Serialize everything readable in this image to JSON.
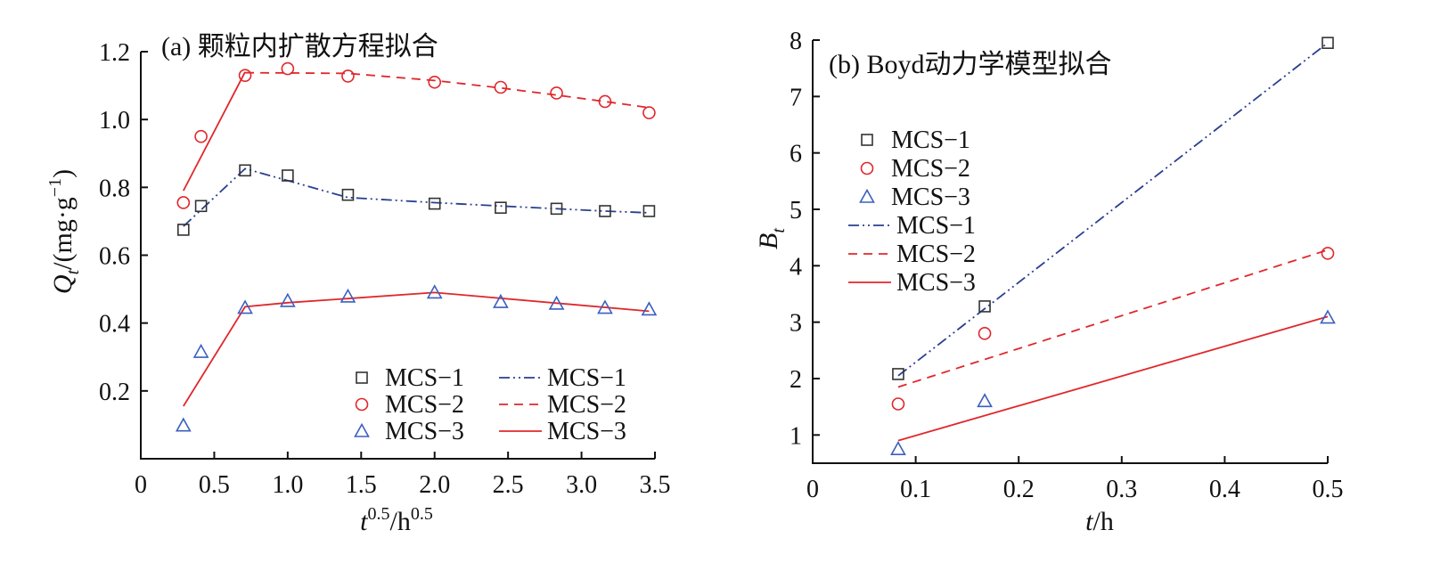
{
  "colors": {
    "mcs1": "#2a3f8f",
    "mcs2": "#e0272b",
    "mcs3": "#3b5fc0",
    "axis": "#111111"
  },
  "chart_data": [
    {
      "type": "scatter",
      "title": "(a)  颗粒内扩散方程拟合",
      "xlabel": "t^0.5/h^0.5",
      "ylabel": "Qt/(mg·g−1)",
      "xlim": [
        0,
        3.5
      ],
      "ylim": [
        0,
        1.2
      ],
      "xticks": [
        0,
        0.5,
        1.0,
        1.5,
        2.0,
        2.5,
        3.0,
        3.5
      ],
      "xtick_labels": [
        "0",
        "0.5",
        "1.0",
        "1.5",
        "2.0",
        "2.5",
        "3.0",
        "3.5"
      ],
      "yticks": [
        0.2,
        0.4,
        0.6,
        0.8,
        1.0,
        1.2
      ],
      "ytick_labels": [
        "0.2",
        "0.4",
        "0.6",
        "0.8",
        "1.0",
        "1.2"
      ],
      "legend_position": "bottom-right",
      "series": [
        {
          "name": "MCS−1",
          "kind": "points",
          "marker": "square",
          "color": "#333333",
          "x": [
            0.29,
            0.41,
            0.71,
            1.0,
            1.41,
            2.0,
            2.45,
            2.83,
            3.16,
            3.46
          ],
          "y": [
            0.675,
            0.745,
            0.85,
            0.835,
            0.778,
            0.752,
            0.74,
            0.737,
            0.73,
            0.73
          ]
        },
        {
          "name": "MCS−2",
          "kind": "points",
          "marker": "circle",
          "color": "#e0272b",
          "x": [
            0.29,
            0.41,
            0.71,
            1.0,
            1.41,
            2.0,
            2.45,
            2.83,
            3.16,
            3.46
          ],
          "y": [
            0.755,
            0.95,
            1.13,
            1.15,
            1.128,
            1.11,
            1.095,
            1.078,
            1.053,
            1.02
          ]
        },
        {
          "name": "MCS−3",
          "kind": "points",
          "marker": "triangle",
          "color": "#3b5fc0",
          "x": [
            0.29,
            0.41,
            0.71,
            1.0,
            1.41,
            2.0,
            2.45,
            2.83,
            3.16,
            3.46
          ],
          "y": [
            0.098,
            0.315,
            0.445,
            0.465,
            0.478,
            0.49,
            0.462,
            0.457,
            0.445,
            0.44
          ]
        },
        {
          "name": "MCS−1",
          "kind": "line",
          "dash": "dashdotdot",
          "color": "#2a3f8f",
          "x": [
            0.29,
            0.71,
            1.0,
            1.41,
            2.0,
            2.45,
            2.83,
            3.16,
            3.46
          ],
          "y": [
            0.685,
            0.855,
            0.82,
            0.77,
            0.755,
            0.745,
            0.737,
            0.73,
            0.725
          ]
        },
        {
          "name": "MCS−2",
          "kind": "line",
          "dash": "dashed",
          "color": "#e0272b",
          "x": [
            0.71,
            1.41,
            2.0,
            2.45,
            2.83,
            3.16,
            3.46
          ],
          "y": [
            1.138,
            1.136,
            1.115,
            1.093,
            1.072,
            1.053,
            1.035
          ]
        },
        {
          "name": "MCS−2",
          "kind": "line",
          "dash": "solid",
          "color": "#e0272b",
          "legend": false,
          "x": [
            0.29,
            0.71
          ],
          "y": [
            0.79,
            1.14
          ]
        },
        {
          "name": "MCS−3",
          "kind": "line",
          "dash": "solid",
          "color": "#e0272b",
          "x": [
            0.29,
            0.71,
            1.0,
            2.0,
            3.46
          ],
          "y": [
            0.155,
            0.448,
            0.46,
            0.49,
            0.435
          ]
        }
      ]
    },
    {
      "type": "scatter",
      "title": "(b)  Boyd动力学模型拟合",
      "xlabel": "t/h",
      "ylabel": "Bt",
      "xlim": [
        0,
        0.5
      ],
      "ylim": [
        0.5,
        8
      ],
      "xticks": [
        0,
        0.1,
        0.2,
        0.3,
        0.4,
        0.5
      ],
      "xtick_labels": [
        "0",
        "0.1",
        "0.2",
        "0.3",
        "0.4",
        "0.5"
      ],
      "yticks": [
        1,
        2,
        3,
        4,
        5,
        6,
        7,
        8
      ],
      "ytick_labels": [
        "1",
        "2",
        "3",
        "4",
        "5",
        "6",
        "7",
        "8"
      ],
      "legend_position": "upper-left",
      "series": [
        {
          "name": "MCS−1",
          "kind": "points",
          "marker": "square",
          "color": "#333333",
          "x": [
            0.083,
            0.167,
            0.5
          ],
          "y": [
            2.08,
            3.28,
            7.95
          ]
        },
        {
          "name": "MCS−2",
          "kind": "points",
          "marker": "circle",
          "color": "#e0272b",
          "x": [
            0.083,
            0.167,
            0.5
          ],
          "y": [
            1.55,
            2.8,
            4.22
          ]
        },
        {
          "name": "MCS−3",
          "kind": "points",
          "marker": "triangle",
          "color": "#3b5fc0",
          "x": [
            0.083,
            0.167,
            0.5
          ],
          "y": [
            0.75,
            1.6,
            3.08
          ]
        },
        {
          "name": "MCS−1",
          "kind": "line",
          "dash": "dashdotdot",
          "color": "#2a3f8f",
          "x": [
            0.083,
            0.5
          ],
          "y": [
            2.05,
            7.95
          ]
        },
        {
          "name": "MCS−2",
          "kind": "line",
          "dash": "dashed",
          "color": "#e0272b",
          "x": [
            0.083,
            0.5
          ],
          "y": [
            1.85,
            4.28
          ]
        },
        {
          "name": "MCS−3",
          "kind": "line",
          "dash": "solid",
          "color": "#e0272b",
          "x": [
            0.083,
            0.5
          ],
          "y": [
            0.9,
            3.1
          ]
        }
      ]
    }
  ]
}
